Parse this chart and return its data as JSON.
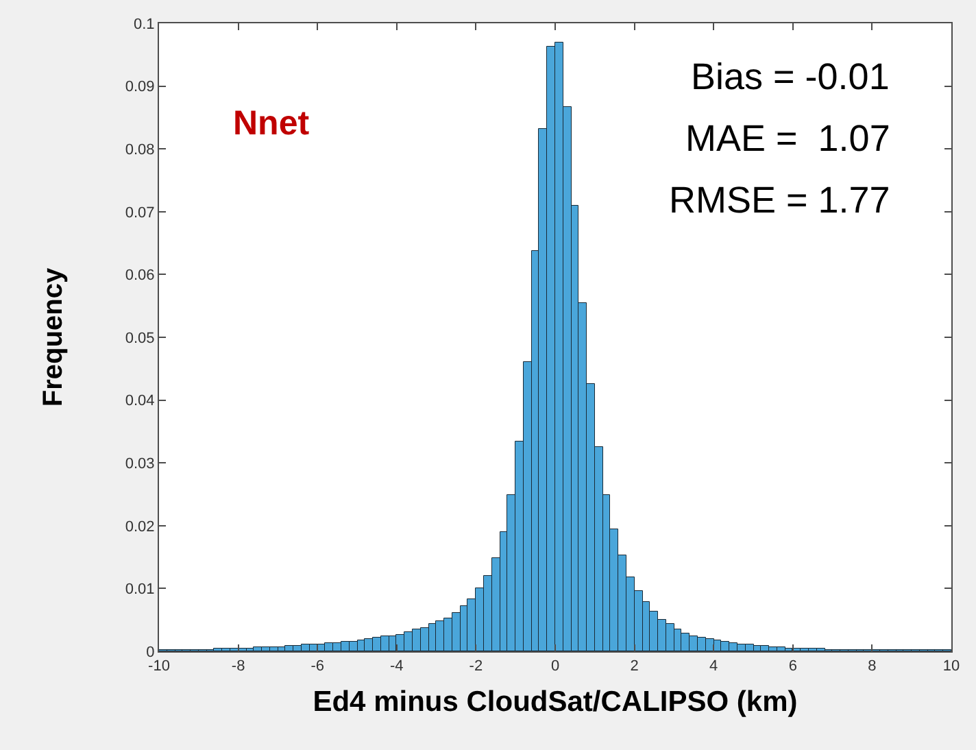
{
  "chart_data": {
    "type": "histogram",
    "xlabel": "Ed4 minus CloudSat/CALIPSO (km)",
    "ylabel": "Frequency",
    "annotations": [
      "Nnet",
      "Bias = -0.01",
      "MAE =  1.07",
      "RMSE = 1.77"
    ],
    "bins": [
      -10,
      -9.8,
      -9.6,
      -9.4,
      -9.2,
      -9,
      -8.8,
      -8.6,
      -8.4,
      -8.2,
      -8,
      -7.8,
      -7.6,
      -7.4,
      -7.2,
      -7,
      -6.8,
      -6.6,
      -6.4,
      -6.2,
      -6,
      -5.8,
      -5.6,
      -5.4,
      -5.2,
      -5,
      -4.8,
      -4.6,
      -4.4,
      -4.2,
      -4,
      -3.8,
      -3.6,
      -3.4,
      -3.2,
      -3,
      -2.8,
      -2.6,
      -2.4,
      -2.2,
      -2,
      -1.8,
      -1.6,
      -1.4,
      -1.2,
      -1,
      -0.8,
      -0.6,
      -0.4,
      -0.2,
      0,
      0.2,
      0.4,
      0.6,
      0.8,
      1,
      1.2,
      1.4,
      1.6,
      1.8,
      2,
      2.2,
      2.4,
      2.6,
      2.8,
      3,
      3.2,
      3.4,
      3.6,
      3.8,
      4,
      4.2,
      4.4,
      4.6,
      4.8,
      5,
      5.2,
      5.4,
      5.6,
      5.8,
      6,
      6.2,
      6.4,
      6.6,
      6.8,
      7,
      7.2,
      7.4,
      7.6,
      7.8,
      8,
      8.2,
      8.4,
      8.6,
      8.8,
      9,
      9.2,
      9.4,
      9.6,
      9.8,
      10
    ],
    "values": [
      0.0002,
      0.0002,
      0.0002,
      0.0002,
      0.0002,
      0.0003,
      0.0003,
      0.0004,
      0.0004,
      0.0004,
      0.0005,
      0.0005,
      0.0006,
      0.0006,
      0.0007,
      0.0007,
      0.0008,
      0.0009,
      0.001,
      0.0011,
      0.0012,
      0.0013,
      0.0014,
      0.0015,
      0.0016,
      0.0018,
      0.0019,
      0.0021,
      0.0023,
      0.0025,
      0.0027,
      0.003,
      0.0034,
      0.0038,
      0.0043,
      0.0048,
      0.0053,
      0.0061,
      0.0072,
      0.0083,
      0.01,
      0.012,
      0.0149,
      0.019,
      0.0248,
      0.0334,
      0.046,
      0.0638,
      0.0832,
      0.0962,
      0.097,
      0.0866,
      0.071,
      0.0554,
      0.0425,
      0.0326,
      0.0249,
      0.0195,
      0.0153,
      0.0119,
      0.0096,
      0.0078,
      0.0063,
      0.0051,
      0.0043,
      0.0035,
      0.0029,
      0.0025,
      0.0022,
      0.0019,
      0.0017,
      0.0015,
      0.0013,
      0.0011,
      0.001,
      0.0009,
      0.0008,
      0.0007,
      0.0006,
      0.0005,
      0.0005,
      0.0004,
      0.0004,
      0.0004,
      0.0003,
      0.0003,
      0.0003,
      0.0003,
      0.0002,
      0.0002,
      0.0002,
      0.0002,
      0.0002,
      0.0002,
      0.0002,
      0.0002,
      0.0002,
      0.0002,
      0.0002,
      0.0002
    ],
    "color": "#4aa6da",
    "xlim": [
      -10,
      10
    ],
    "xticks": [
      -10,
      -8,
      -6,
      -4,
      -2,
      0,
      2,
      4,
      6,
      8,
      10
    ],
    "ylim": [
      0,
      0.1
    ],
    "yticks": [
      0,
      0.01,
      0.02,
      0.03,
      0.04,
      0.05,
      0.06,
      0.07,
      0.08,
      0.09,
      0.1
    ]
  }
}
